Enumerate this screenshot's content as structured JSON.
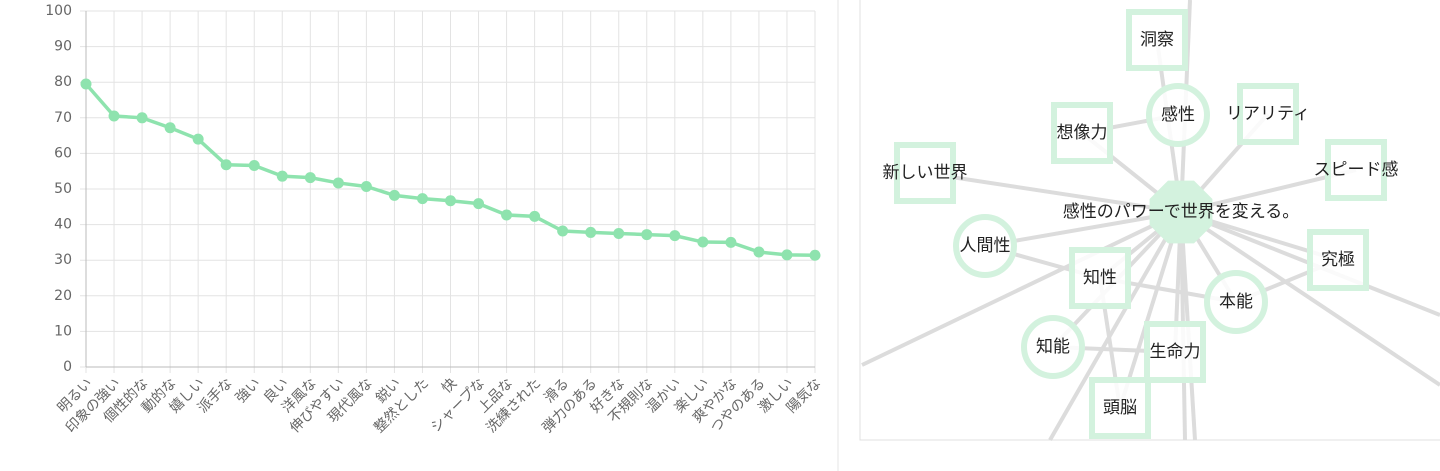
{
  "chart_data": {
    "type": "line",
    "categories": [
      "明るい",
      "印象の強い",
      "個性的な",
      "動的な",
      "嬉しい",
      "派手な",
      "強い",
      "良い",
      "洋風な",
      "伸びやすい",
      "現代風な",
      "鋭い",
      "整然とした",
      "快",
      "シャープな",
      "上品な",
      "洗練された",
      "滑る",
      "弾力のある",
      "好きな",
      "不規則な",
      "温かい",
      "楽しい",
      "爽やかな",
      "つやのある",
      "激しい",
      "陽気な"
    ],
    "values": [
      79.5,
      70.5,
      70,
      67.2,
      64,
      56.8,
      56.6,
      53.6,
      53.2,
      51.7,
      50.7,
      48.2,
      47.3,
      46.7,
      45.9,
      42.7,
      42.3,
      38.2,
      37.8,
      37.5,
      37.2,
      36.9,
      35.1,
      35,
      32.3,
      31.5,
      31.4
    ],
    "color": "#8ee3ae",
    "ylim": [
      0,
      100
    ],
    "yticks": [
      0,
      10,
      20,
      30,
      40,
      50,
      60,
      70,
      80,
      90,
      100
    ],
    "grid": true
  },
  "network": {
    "nodes": [
      {
        "label": "洞察"
      },
      {
        "label": "感性"
      },
      {
        "label": "リアリティ"
      },
      {
        "label": "想像力"
      },
      {
        "label": "新しい世界"
      },
      {
        "label": "スピード感"
      },
      {
        "label": "感性のパワーで世界を変える。"
      },
      {
        "label": "人間性"
      },
      {
        "label": "究極"
      },
      {
        "label": "知性"
      },
      {
        "label": "本能"
      },
      {
        "label": "知能"
      },
      {
        "label": "生命力"
      },
      {
        "label": "頭脳"
      }
    ]
  }
}
